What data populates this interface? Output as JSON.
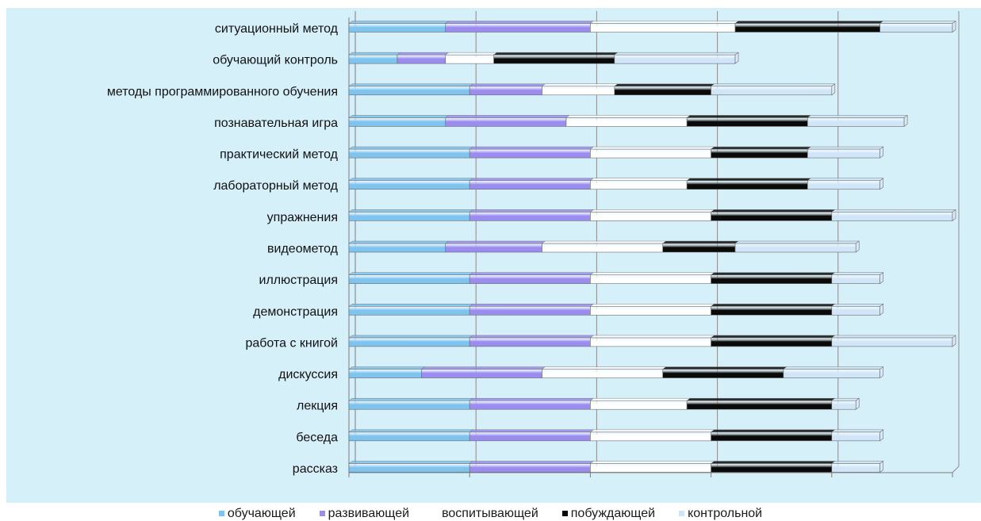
{
  "chart_data": {
    "type": "bar",
    "orientation": "horizontal",
    "stacked": true,
    "categories": [
      "ситуационный метод",
      "обучающий контроль",
      "методы программированного обучения",
      "познавательная игра",
      "практический метод",
      "лабораторный метод",
      "упражнения",
      "видеометод",
      "иллюстрация",
      "демонстрация",
      "работа с книгой",
      "дискуссия",
      "лекция",
      "беседа",
      "рассказ"
    ],
    "series": [
      {
        "name": "обучающей",
        "color": "#7fc4ef",
        "values": [
          4,
          2,
          5,
          4,
          5,
          5,
          5,
          4,
          5,
          5,
          5,
          3,
          5,
          5,
          5
        ]
      },
      {
        "name": "развивающей",
        "color": "#9b8cf0",
        "values": [
          6,
          2,
          3,
          5,
          5,
          5,
          5,
          4,
          5,
          5,
          5,
          5,
          5,
          5,
          5
        ]
      },
      {
        "name": "воспитывающей",
        "color": "#ffffff",
        "values": [
          6,
          2,
          3,
          5,
          5,
          4,
          5,
          5,
          5,
          5,
          5,
          5,
          4,
          5,
          5
        ]
      },
      {
        "name": "побуждающей",
        "color": "#0a0a0a",
        "values": [
          6,
          5,
          4,
          5,
          4,
          5,
          5,
          3,
          5,
          5,
          5,
          5,
          6,
          5,
          5
        ]
      },
      {
        "name": "контрольной",
        "color": "#d0e6f8",
        "values": [
          3,
          5,
          5,
          4,
          3,
          3,
          5,
          5,
          2,
          2,
          5,
          4,
          1,
          2,
          2
        ]
      }
    ],
    "xlim": [
      0,
      25
    ],
    "grid": true,
    "legend_position": "bottom"
  }
}
